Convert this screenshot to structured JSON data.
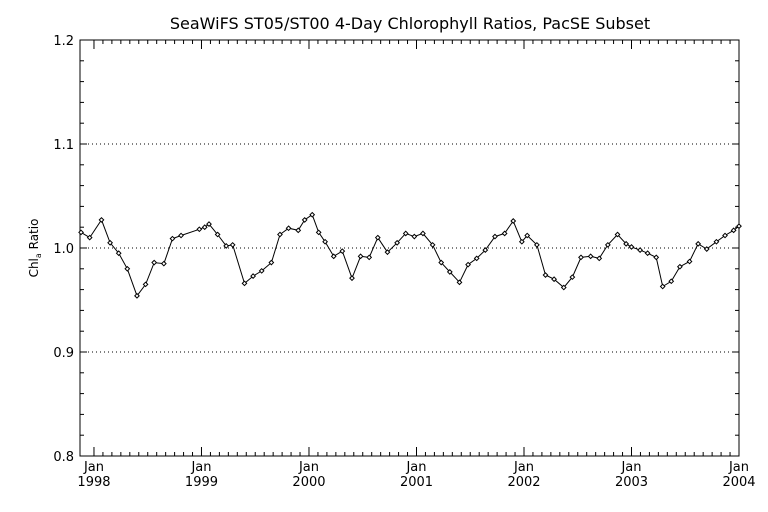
{
  "chart_data": {
    "type": "line",
    "title": "SeaWiFS ST05/ST00 4-Day Chlorophyll Ratios, PacSE Subset",
    "ylabel_main": "Chl",
    "ylabel_sub": "a",
    "ylabel_rest": " Ratio",
    "xlabel": "",
    "ylim": [
      0.8,
      1.2
    ],
    "xlim": [
      1997.87,
      2004.0
    ],
    "yticks": [
      0.8,
      0.9,
      1.0,
      1.1,
      1.2
    ],
    "ytick_labels": [
      "0.8",
      "0.9",
      "1.0",
      "1.1",
      "1.2"
    ],
    "xticks": [
      {
        "x": 1998.0,
        "month": "Jan",
        "year": "1998"
      },
      {
        "x": 1999.0,
        "month": "Jan",
        "year": "1999"
      },
      {
        "x": 2000.0,
        "month": "Jan",
        "year": "2000"
      },
      {
        "x": 2001.0,
        "month": "Jan",
        "year": "2001"
      },
      {
        "x": 2002.0,
        "month": "Jan",
        "year": "2002"
      },
      {
        "x": 2003.0,
        "month": "Jan",
        "year": "2003"
      },
      {
        "x": 2004.0,
        "month": "Jan",
        "year": "2004"
      }
    ],
    "grid": "horizontal dotted",
    "series": [
      {
        "name": "",
        "color": "#000000",
        "marker": "diamond",
        "x": [
          1997.88,
          1997.96,
          1998.07,
          1998.15,
          1998.23,
          1998.31,
          1998.4,
          1998.48,
          1998.56,
          1998.65,
          1998.73,
          1998.81,
          1998.98,
          1999.03,
          1999.07,
          1999.15,
          1999.23,
          1999.29,
          1999.4,
          1999.48,
          1999.56,
          1999.65,
          1999.73,
          1999.81,
          1999.9,
          1999.96,
          2000.03,
          2000.09,
          2000.15,
          2000.23,
          2000.31,
          2000.4,
          2000.48,
          2000.56,
          2000.64,
          2000.73,
          2000.82,
          2000.9,
          2000.98,
          2001.06,
          2001.15,
          2001.23,
          2001.31,
          2001.4,
          2001.48,
          2001.56,
          2001.64,
          2001.73,
          2001.82,
          2001.9,
          2001.98,
          2002.03,
          2002.12,
          2002.2,
          2002.28,
          2002.37,
          2002.45,
          2002.53,
          2002.62,
          2002.7,
          2002.78,
          2002.87,
          2002.95,
          2003.0,
          2003.08,
          2003.15,
          2003.23,
          2003.29,
          2003.37,
          2003.45,
          2003.54,
          2003.62,
          2003.7,
          2003.79,
          2003.87,
          2003.95,
          2004.0
        ],
        "y": [
          1.015,
          1.01,
          1.027,
          1.005,
          0.995,
          0.98,
          0.954,
          0.965,
          0.986,
          0.985,
          1.009,
          1.012,
          1.018,
          1.02,
          1.023,
          1.013,
          1.002,
          1.003,
          0.966,
          0.973,
          0.978,
          0.986,
          1.013,
          1.019,
          1.017,
          1.027,
          1.032,
          1.015,
          1.006,
          0.992,
          0.997,
          0.971,
          0.992,
          0.991,
          1.01,
          0.996,
          1.005,
          1.014,
          1.011,
          1.014,
          1.003,
          0.986,
          0.977,
          0.967,
          0.984,
          0.99,
          0.998,
          1.011,
          1.014,
          1.026,
          1.006,
          1.012,
          1.003,
          0.974,
          0.97,
          0.962,
          0.972,
          0.991,
          0.992,
          0.99,
          1.003,
          1.013,
          1.004,
          1.001,
          0.998,
          0.995,
          0.991,
          0.963,
          0.968,
          0.982,
          0.987,
          1.004,
          0.999,
          1.006,
          1.012,
          1.017,
          1.021
        ]
      }
    ]
  }
}
